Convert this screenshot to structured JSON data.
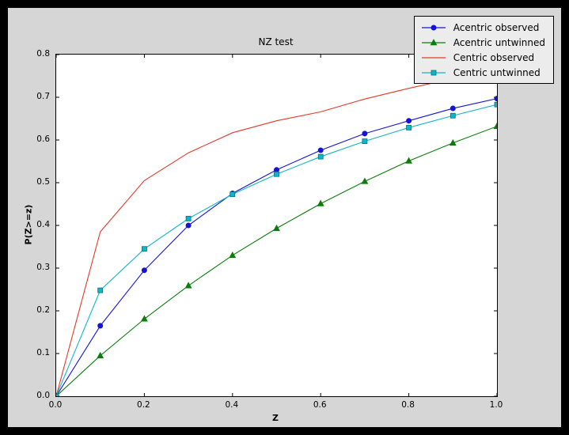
{
  "window": {
    "background": "#000000",
    "figure_background": "#d6d6d6",
    "axes_background": "#ffffff"
  },
  "chart_data": {
    "type": "line",
    "title": "NZ test",
    "xlabel": "Z",
    "ylabel": "P(Z>=z)",
    "xlim": [
      0.0,
      1.0
    ],
    "ylim": [
      0.0,
      0.8
    ],
    "grid": false,
    "legend_position": "upper right",
    "x": [
      0.0,
      0.1,
      0.2,
      0.3,
      0.4,
      0.5,
      0.6,
      0.7,
      0.8,
      0.9,
      1.0
    ],
    "xticks": {
      "values": [
        0.0,
        0.2,
        0.4,
        0.6,
        0.8,
        1.0
      ],
      "labels": [
        "0.0",
        "0.2",
        "0.4",
        "0.6",
        "0.8",
        "1.0"
      ]
    },
    "yticks": {
      "values": [
        0.0,
        0.1,
        0.2,
        0.3,
        0.4,
        0.5,
        0.6,
        0.7,
        0.8
      ],
      "labels": [
        "0.0",
        "0.1",
        "0.2",
        "0.3",
        "0.4",
        "0.5",
        "0.6",
        "0.7",
        "0.8"
      ]
    },
    "series": [
      {
        "name": "Acentric observed",
        "color": "#1414d2",
        "marker": "circle",
        "values": [
          0.0,
          0.165,
          0.295,
          0.4,
          0.475,
          0.53,
          0.576,
          0.615,
          0.645,
          0.674,
          0.697
        ]
      },
      {
        "name": "Acentric untwinned",
        "color": "#0b7d0b",
        "marker": "triangle",
        "values": [
          0.0,
          0.095,
          0.181,
          0.259,
          0.33,
          0.393,
          0.451,
          0.503,
          0.551,
          0.593,
          0.632
        ]
      },
      {
        "name": "Centric observed",
        "color": "#e23b28",
        "marker": "none",
        "values": [
          0.0,
          0.385,
          0.505,
          0.57,
          0.617,
          0.645,
          0.666,
          0.696,
          0.721,
          0.744,
          0.763
        ]
      },
      {
        "name": "Centric untwinned",
        "color": "#12b4c8",
        "marker": "square",
        "values": [
          0.0,
          0.248,
          0.345,
          0.416,
          0.473,
          0.52,
          0.561,
          0.597,
          0.629,
          0.657,
          0.683
        ]
      }
    ]
  }
}
